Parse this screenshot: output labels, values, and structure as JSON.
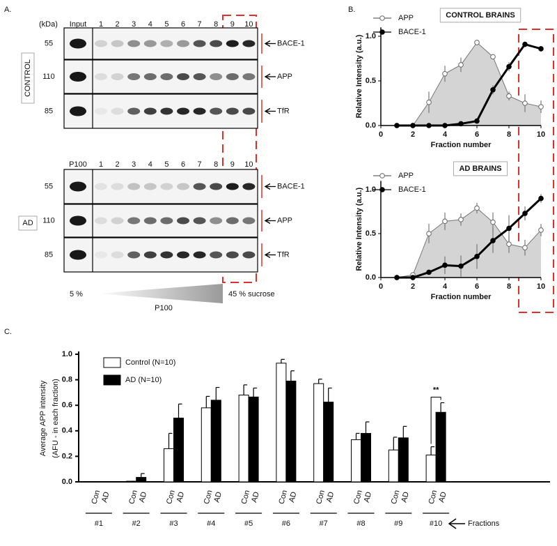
{
  "blot": {
    "panel_label": "A.",
    "kda_label": "(kDa)",
    "lanes": [
      "1",
      "2",
      "3",
      "4",
      "5",
      "6",
      "7",
      "8",
      "9",
      "10"
    ],
    "control": {
      "label": "CONTROL",
      "first_lane": "Input",
      "rows": [
        {
          "kda": "55",
          "protein": "BACE-1"
        },
        {
          "kda": "110",
          "protein": "APP"
        },
        {
          "kda": "85",
          "protein": "TfR"
        }
      ]
    },
    "ad": {
      "label": "AD",
      "first_lane": "P100",
      "rows": [
        {
          "kda": "55",
          "protein": "BACE-1"
        },
        {
          "kda": "110",
          "protein": "APP"
        },
        {
          "kda": "85",
          "protein": "TfR"
        }
      ]
    },
    "gradient": {
      "start": "5 %",
      "middle": "P100",
      "end": "45 % sucrose"
    }
  },
  "chart_data": [
    {
      "type": "line",
      "panel_label": "B.",
      "title": "CONTROL BRAINS",
      "xlabel": "Fraction number",
      "ylabel": "Relative Intensity (a.u.)",
      "x": [
        1,
        2,
        3,
        4,
        5,
        6,
        7,
        8,
        9,
        10
      ],
      "xlim": [
        0,
        10
      ],
      "xticks": [
        0,
        2,
        4,
        6,
        8,
        10
      ],
      "ylim": [
        0,
        1.1
      ],
      "yticks": [
        {
          "value": 0,
          "label": "0.0"
        },
        0.5,
        {
          "value": 1,
          "label": "1.0"
        }
      ],
      "series": [
        {
          "name": "APP",
          "color": "#ffffff",
          "area_color": "#d4d4d4",
          "values": [
            0,
            0,
            0.26,
            0.58,
            0.68,
            0.93,
            0.77,
            0.33,
            0.25,
            0.21
          ],
          "errors": [
            0,
            0,
            0.12,
            0.09,
            0.08,
            0.03,
            0.03,
            0.05,
            0.1,
            0.07
          ]
        },
        {
          "name": "BACE-1",
          "color": "#000000",
          "values": [
            0,
            0,
            0,
            0,
            0.02,
            0.05,
            0.4,
            0.66,
            0.91,
            0.86
          ],
          "errors": [
            0,
            0,
            0,
            0,
            0,
            0,
            0.05,
            0.05,
            0.03,
            0.03
          ]
        }
      ]
    },
    {
      "type": "line",
      "title": "AD BRAINS",
      "xlabel": "Fraction number",
      "ylabel": "Relative Intensity (a.u.)",
      "x": [
        1,
        2,
        3,
        4,
        5,
        6,
        7,
        8,
        9,
        10
      ],
      "xlim": [
        0,
        10
      ],
      "xticks": [
        0,
        2,
        4,
        6,
        8,
        10
      ],
      "ylim": [
        0,
        1.1
      ],
      "yticks": [
        {
          "value": 0,
          "label": "0.0"
        },
        0.5,
        {
          "value": 1,
          "label": "1.0"
        }
      ],
      "series": [
        {
          "name": "APP",
          "color": "#ffffff",
          "area_color": "#d4d4d4",
          "values": [
            0,
            0.03,
            0.5,
            0.64,
            0.66,
            0.79,
            0.63,
            0.38,
            0.34,
            0.54
          ],
          "errors": [
            0,
            0,
            0.11,
            0.1,
            0.07,
            0.06,
            0.11,
            0.1,
            0.09,
            0.07
          ]
        },
        {
          "name": "BACE-1",
          "color": "#000000",
          "values": [
            0,
            0,
            0.06,
            0.14,
            0.13,
            0.24,
            0.42,
            0.56,
            0.73,
            0.9
          ],
          "errors": [
            0,
            0,
            0,
            0.1,
            0.12,
            0.14,
            0.14,
            0.15,
            0.08,
            0.05
          ]
        }
      ]
    },
    {
      "type": "bar",
      "panel_label": "C.",
      "ylabel": [
        "Average APP intensity",
        "(AFU - in each fraction)"
      ],
      "categories": [
        "#1",
        "#2",
        "#3",
        "#4",
        "#5",
        "#6",
        "#7",
        "#8",
        "#9",
        "#10"
      ],
      "group_labels": [
        "Con",
        "AD"
      ],
      "axis_note": "Fractions",
      "annotation": "**",
      "ylim": [
        0,
        1
      ],
      "yticks": [
        {
          "value": 0,
          "label": "0.0"
        },
        0.2,
        0.4,
        0.6,
        0.8,
        {
          "value": 1,
          "label": "1.0"
        }
      ],
      "series": [
        {
          "name": "Control (N=10)",
          "color": "#ffffff",
          "values": [
            0,
            0.005,
            0.26,
            0.58,
            0.68,
            0.93,
            0.77,
            0.33,
            0.25,
            0.21
          ],
          "errors": [
            0,
            0,
            0.12,
            0.09,
            0.08,
            0.03,
            0.035,
            0.05,
            0.1,
            0.065
          ]
        },
        {
          "name": "AD (N=10)",
          "color": "#000000",
          "values": [
            0,
            0.035,
            0.5,
            0.64,
            0.665,
            0.79,
            0.625,
            0.38,
            0.345,
            0.545
          ],
          "errors": [
            0,
            0.03,
            0.11,
            0.1,
            0.07,
            0.08,
            0.11,
            0.09,
            0.09,
            0.075
          ]
        }
      ]
    }
  ]
}
